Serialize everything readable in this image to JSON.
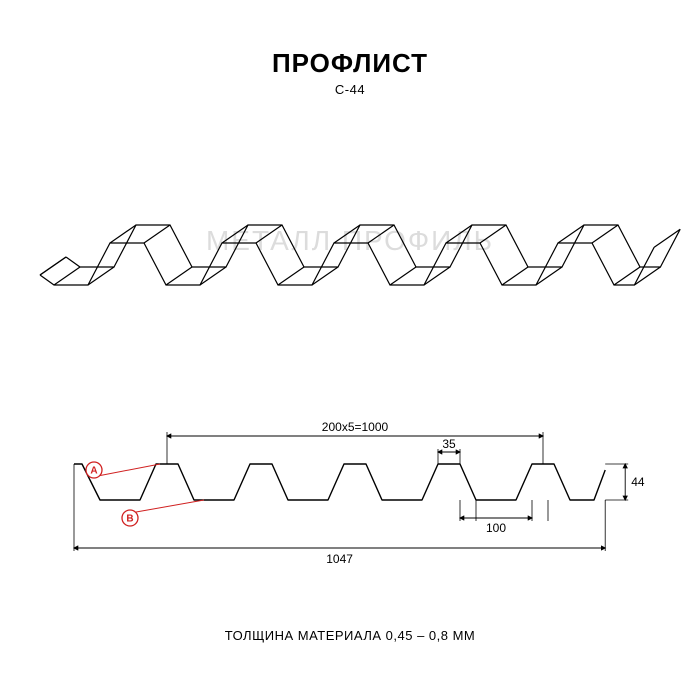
{
  "title": "ПРОФЛИСТ",
  "subtitle": "С-44",
  "footer": "ТОЛЩИНА МАТЕРИАЛА 0,45 – 0,8 ММ",
  "watermark": "МЕТАЛЛ ПРОФИЛЬ",
  "title_fontsize": 26,
  "subtitle_fontsize": 13,
  "footer_fontsize": 13,
  "colors": {
    "background": "#ffffff",
    "stroke": "#000000",
    "dim_line": "#000000",
    "watermark": "#dcdcdc",
    "marker_a_fill": "#ffffff",
    "marker_a_stroke": "#d02020",
    "marker_a_text": "#d02020",
    "marker_b_fill": "#ffffff",
    "marker_b_stroke": "#d02020",
    "marker_b_text": "#d02020"
  },
  "perspective": {
    "type": "isometric-profile",
    "ridges": 5,
    "stroke_width": 1.2
  },
  "cross_section": {
    "type": "trapezoidal-profile",
    "ridges": 5,
    "stroke_width": 1.4,
    "dimensions": {
      "pitch_label": "200x5=1000",
      "total_width": "1047",
      "top_width": "35",
      "bottom_width": "100",
      "height": "44"
    },
    "markers": {
      "A": {
        "label": "A"
      },
      "B": {
        "label": "B"
      }
    },
    "dim_fontsize": 12,
    "marker_radius": 8,
    "marker_fontsize": 10
  }
}
